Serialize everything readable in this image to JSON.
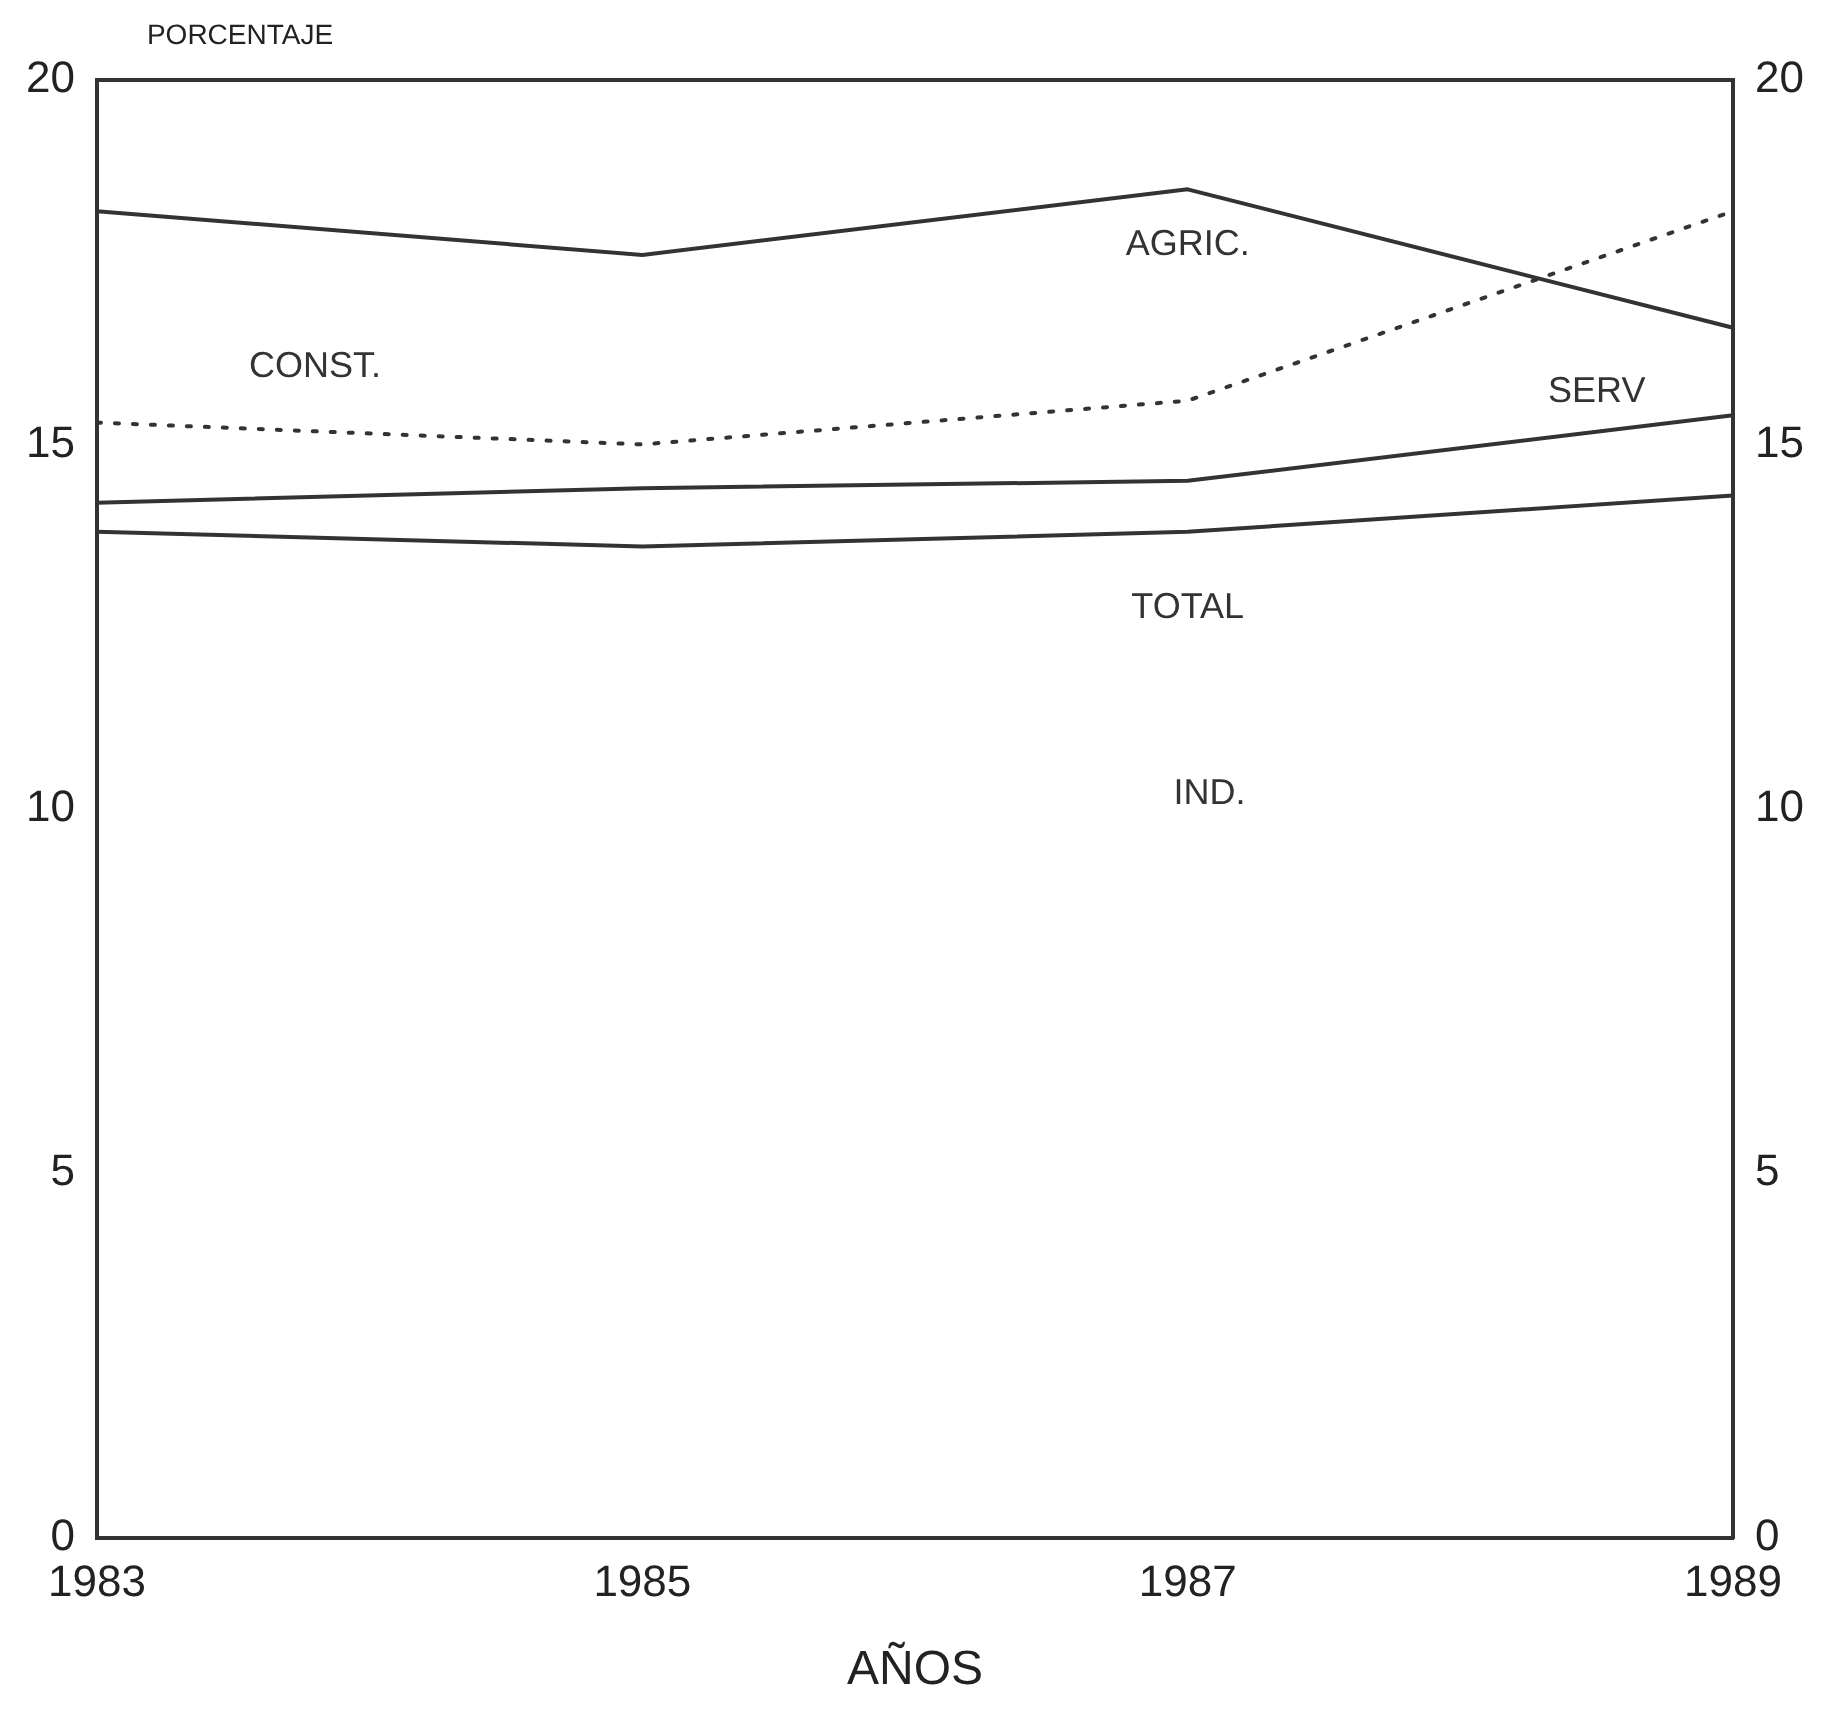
{
  "chart_data": {
    "type": "line",
    "ylabel": "PORCENTAJE",
    "xlabel": "AÑOS",
    "x": [
      1983,
      1985,
      1987,
      1989
    ],
    "xlim": [
      1983,
      1989
    ],
    "xticks": [
      1983,
      1985,
      1987,
      1989
    ],
    "ylim": [
      0,
      20
    ],
    "yticks": [
      0,
      5,
      10,
      15,
      20
    ],
    "y2lim": [
      0,
      20
    ],
    "y2ticks": [
      0,
      5,
      10,
      15,
      20
    ],
    "grid": false,
    "legend": false,
    "marker": "none",
    "series": [
      {
        "name": "AGRIC.",
        "color": "#333333",
        "line_style": "solid",
        "values": [
          18.2,
          17.6,
          18.5,
          16.6
        ]
      },
      {
        "name": "CONST.",
        "color": "#333333",
        "line_style": "dotted",
        "values": [
          15.3,
          15.0,
          15.6,
          18.2
        ]
      },
      {
        "name": "SERV",
        "color": "#333333",
        "line_style": "solid",
        "values": [
          14.2,
          14.4,
          14.5,
          15.4
        ]
      },
      {
        "name": "TOTAL",
        "color": "#333333",
        "line_style": "solid",
        "values": [
          13.8,
          13.6,
          13.8,
          14.3
        ]
      }
    ],
    "annotations": [
      "IND."
    ]
  }
}
